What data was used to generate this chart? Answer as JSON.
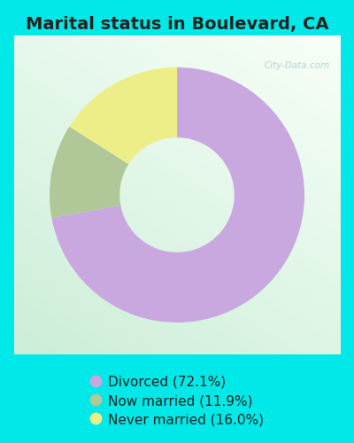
{
  "title": "Marital status in Boulevard, CA",
  "slices": [
    72.1,
    11.9,
    16.0
  ],
  "labels": [
    "Divorced (72.1%)",
    "Now married (11.9%)",
    "Never married (16.0%)"
  ],
  "colors": [
    "#c9a8e0",
    "#b0c898",
    "#eeee88"
  ],
  "bg_cyan": "#00e8e8",
  "chart_bg_tl": "#e8f5ee",
  "chart_bg_tr": "#f0f8f8",
  "chart_bg_bl": "#d0eedc",
  "chart_bg_br": "#e0f4ec",
  "title_fontsize": 14,
  "legend_fontsize": 11,
  "title_color": "#222222",
  "watermark": "City-Data.com",
  "donut_width": 0.55
}
